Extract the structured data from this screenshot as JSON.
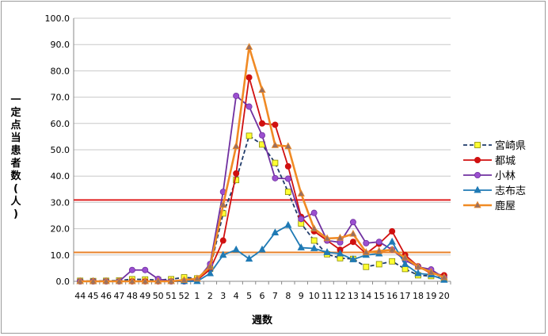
{
  "chart_data": {
    "type": "line",
    "title": "",
    "xlabel": "週数",
    "ylabel": "一定点当患者数(人)",
    "ylim": [
      0,
      100
    ],
    "ytick_labels": [
      "0.0",
      "10.0",
      "20.0",
      "30.0",
      "40.0",
      "50.0",
      "60.0",
      "70.0",
      "80.0",
      "90.0",
      "100.0"
    ],
    "categories": [
      "44",
      "45",
      "46",
      "47",
      "48",
      "49",
      "50",
      "51",
      "52",
      "1",
      "2",
      "3",
      "4",
      "5",
      "6",
      "7",
      "8",
      "9",
      "10",
      "11",
      "12",
      "13",
      "14",
      "15",
      "16",
      "17",
      "18",
      "19",
      "20"
    ],
    "grid": "horizontal",
    "legend_position": "right",
    "reference_lines": [
      {
        "value": 30.9,
        "color": "#e02020"
      },
      {
        "value": 11.0,
        "color": "#e8822a"
      }
    ],
    "series": [
      {
        "name": "宮崎県",
        "color": "#1f3a6a",
        "marker": "square",
        "marker_fill": "#ffff33",
        "dash": "dashed",
        "values": [
          0.2,
          0.1,
          0.2,
          0.3,
          0.8,
          0.7,
          0.5,
          0.8,
          1.5,
          1.1,
          4.8,
          25.8,
          38.5,
          55.3,
          52.0,
          45.0,
          34.0,
          22.0,
          15.5,
          10.3,
          8.8,
          8.5,
          5.5,
          6.5,
          7.6,
          4.7,
          2.3,
          2.0,
          1.2
        ]
      },
      {
        "name": "都城",
        "color": "#d01010",
        "marker": "circle",
        "marker_fill": "#d01010",
        "dash": "solid",
        "values": [
          0.0,
          0.0,
          0.0,
          0.0,
          0.0,
          0.0,
          0.0,
          0.0,
          0.0,
          0.5,
          4.5,
          15.5,
          41.0,
          77.5,
          60.0,
          59.5,
          43.7,
          24.5,
          19.0,
          15.5,
          12.0,
          15.0,
          10.5,
          14.3,
          19.0,
          10.0,
          5.7,
          3.0,
          2.3
        ]
      },
      {
        "name": "小林",
        "color": "#7030a0",
        "marker": "circle",
        "marker_fill": "#9b4fd0",
        "dash": "solid",
        "values": [
          0.0,
          0.0,
          0.0,
          0.0,
          4.3,
          4.3,
          0.9,
          0.0,
          0.0,
          0.5,
          6.6,
          34.0,
          70.5,
          66.4,
          55.5,
          39.2,
          39.0,
          23.7,
          26.0,
          15.5,
          14.8,
          22.5,
          14.5,
          15.0,
          12.0,
          8.0,
          5.5,
          4.5,
          1.3
        ]
      },
      {
        "name": "志布志",
        "color": "#1f7ab5",
        "marker": "triangle",
        "marker_fill": "#1f7ab5",
        "dash": "solid",
        "values": [
          0.0,
          0.0,
          0.0,
          0.0,
          0.0,
          0.0,
          0.0,
          0.0,
          0.0,
          0.0,
          3.0,
          10.0,
          12.0,
          8.5,
          12.0,
          18.5,
          21.3,
          12.8,
          12.5,
          11.0,
          10.5,
          8.3,
          10.0,
          10.5,
          15.0,
          6.5,
          3.0,
          2.5,
          0.5
        ]
      },
      {
        "name": "鹿屋",
        "color": "#f08a24",
        "marker": "triangle",
        "marker_fill": "#9a7060",
        "dash": "solid",
        "values": [
          0.0,
          0.0,
          0.0,
          0.0,
          0.0,
          0.0,
          0.0,
          0.0,
          0.5,
          1.0,
          5.5,
          29.0,
          51.3,
          89.0,
          72.7,
          51.7,
          51.3,
          33.3,
          20.0,
          16.3,
          16.5,
          18.0,
          11.0,
          11.5,
          12.0,
          9.0,
          5.5,
          3.5,
          1.5
        ]
      }
    ]
  }
}
